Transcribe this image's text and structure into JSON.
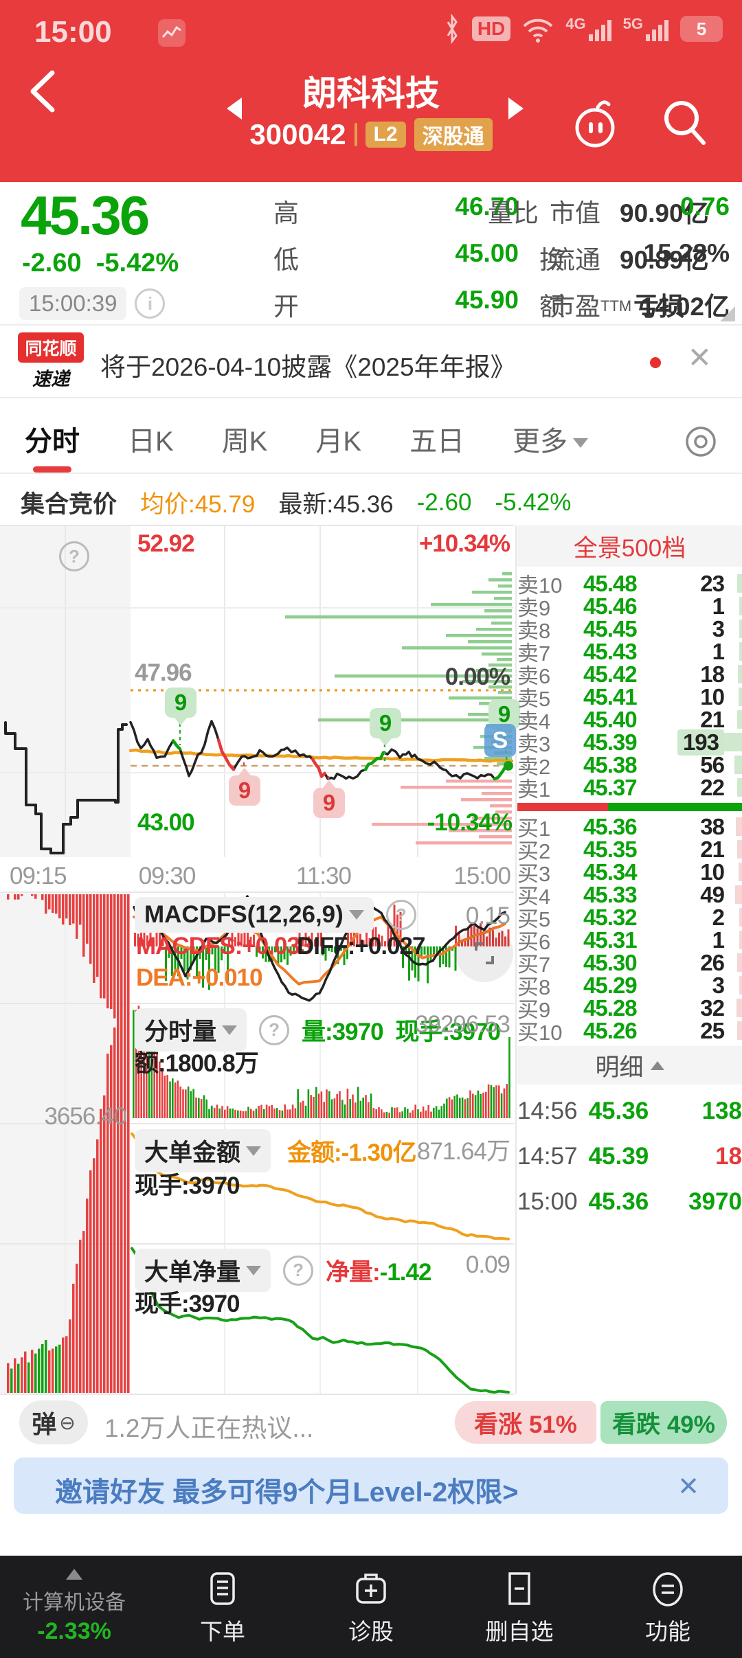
{
  "colors": {
    "app_red": "#e73b3d",
    "down_green": "#0aa30a",
    "up_red": "#e6393b",
    "orange": "#f0930a"
  },
  "statusbar": {
    "time": "15:00",
    "hd": "HD",
    "net4g": "4G",
    "net5g": "5G",
    "battery": "5"
  },
  "header": {
    "title": "朗科科技",
    "code": "300042",
    "l2": "L2",
    "market": "深股通"
  },
  "quote": {
    "price": "45.36",
    "change": "-2.60",
    "pct": "-5.42%",
    "time": "15:00:39",
    "r1": {
      "l1": "高",
      "v1": "46.70",
      "l2": "市值",
      "v2": "90.90亿",
      "l3": "量比",
      "v3": "0.76"
    },
    "r2": {
      "l1": "低",
      "v1": "45.00",
      "l2": "流通",
      "v2": "90.89亿",
      "l3": "换",
      "v3": "15.28%"
    },
    "r3": {
      "l1": "开",
      "v1": "45.90",
      "l2": "市盈",
      "l2s": "TTM",
      "v2": "亏损",
      "l3": "额",
      "v3": "14.02亿"
    }
  },
  "news": {
    "brand1": "同花顺",
    "brand2": "速递",
    "text": "将于2026-04-10披露《2025年年报》"
  },
  "tabs": {
    "items": [
      "分时",
      "日K",
      "周K",
      "月K",
      "五日"
    ],
    "more": "更多"
  },
  "subhead": {
    "title": "集合竞价",
    "avg": "均价:45.79",
    "last": "最新:45.36",
    "chg": "-2.60",
    "pct": "-5.42%"
  },
  "chart": {
    "high": "52.92",
    "high_pct": "+10.34%",
    "mid": "47.96",
    "mid_pct": "0.00%",
    "low": "43.00",
    "low_pct": "-10.34%",
    "t0": "09:15",
    "t1": "09:30",
    "t2": "11:30",
    "t3": "15:00",
    "buy_badge": "9",
    "sell_badge": "9",
    "s_badge": "S"
  },
  "panes": {
    "macd": {
      "title": "MACDFS(12,26,9)",
      "l1": "MACDFS:+0.033",
      "l2": "DIFF:+0.027",
      "l3": "DEA:+0.010",
      "scale": "0.15"
    },
    "vol": {
      "title": "分时量",
      "v1": "量:3970",
      "v2": "现手:3970",
      "amount": "额:1800.8万",
      "scale": "39296.53",
      "aux": "3656.40"
    },
    "amt": {
      "title": "大单金额",
      "v1": "金额:-1.30亿",
      "hand": "现手:3970",
      "scale": "871.64万"
    },
    "net": {
      "title": "大单净量",
      "v1l": "净量:",
      "v1": "-1.42",
      "hand": "现手:3970",
      "scale": "0.09"
    }
  },
  "orderbook": {
    "header": "全景500档",
    "sells": [
      {
        "n": "卖10",
        "p": "45.48",
        "q": "23"
      },
      {
        "n": "卖9",
        "p": "45.46",
        "q": "1"
      },
      {
        "n": "卖8",
        "p": "45.45",
        "q": "3"
      },
      {
        "n": "卖7",
        "p": "45.43",
        "q": "1"
      },
      {
        "n": "卖6",
        "p": "45.42",
        "q": "18"
      },
      {
        "n": "卖5",
        "p": "45.41",
        "q": "10"
      },
      {
        "n": "卖4",
        "p": "45.40",
        "q": "21"
      },
      {
        "n": "卖3",
        "p": "45.39",
        "q": "193"
      },
      {
        "n": "卖2",
        "p": "45.38",
        "q": "56"
      },
      {
        "n": "卖1",
        "p": "45.37",
        "q": "22"
      }
    ],
    "buys": [
      {
        "n": "买1",
        "p": "45.36",
        "q": "38"
      },
      {
        "n": "买2",
        "p": "45.35",
        "q": "21"
      },
      {
        "n": "买3",
        "p": "45.34",
        "q": "10"
      },
      {
        "n": "买4",
        "p": "45.33",
        "q": "49"
      },
      {
        "n": "买5",
        "p": "45.32",
        "q": "2"
      },
      {
        "n": "买6",
        "p": "45.31",
        "q": "1"
      },
      {
        "n": "买7",
        "p": "45.30",
        "q": "26"
      },
      {
        "n": "买8",
        "p": "45.29",
        "q": "3"
      },
      {
        "n": "买9",
        "p": "45.28",
        "q": "32"
      },
      {
        "n": "买10",
        "p": "45.26",
        "q": "25"
      }
    ],
    "detail": "明细",
    "trades": [
      {
        "t": "14:56",
        "p": "45.36",
        "q": "138",
        "d": "b"
      },
      {
        "t": "14:57",
        "p": "45.39",
        "q": "18",
        "d": "s"
      },
      {
        "t": "15:00",
        "p": "45.36",
        "q": "3970",
        "d": "b"
      }
    ]
  },
  "social": {
    "btn": "弹",
    "text": "1.2万人正在热议...",
    "bull": "看涨 51%",
    "bear": "看跌 49%"
  },
  "banner": {
    "text": "邀请好友 最多可得9个月Level-2权限>",
    "close": "✕"
  },
  "nav": {
    "sector": "计算机设备",
    "pct": "-2.33%",
    "items": [
      "下单",
      "诊股",
      "删自选",
      "功能"
    ]
  }
}
